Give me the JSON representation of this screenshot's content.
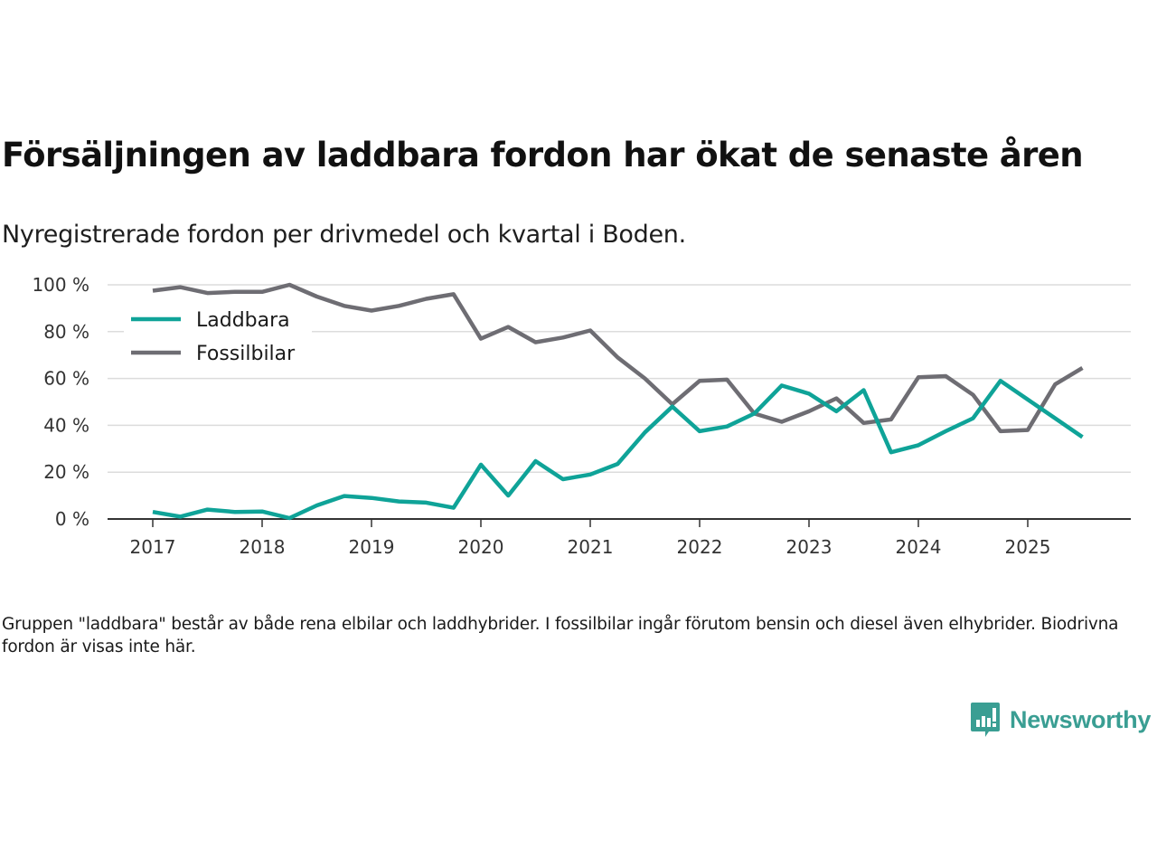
{
  "header": {
    "title": "Försäljningen av laddbara fordon har ökat de senaste åren",
    "subtitle": "Nyregistrerade fordon per drivmedel och kvartal i Boden."
  },
  "footer": {
    "note": "Gruppen \"laddbara\" består av både rena elbilar och laddhybrider. I fossilbilar ingår förutom bensin och diesel även elhybrider. Biodrivna fordon är visas inte här.",
    "brand": "Newsworthy",
    "brand_icon": "bar-chart-speech-bubble-icon",
    "brand_color": "#3a9e93"
  },
  "chart_data": {
    "type": "line",
    "title": "Försäljningen av laddbara fordon har ökat de senaste åren",
    "subtitle": "Nyregistrerade fordon per drivmedel och kvartal i Boden.",
    "xlabel": "",
    "ylabel": "",
    "x": [
      "2017Q1",
      "2017Q2",
      "2017Q3",
      "2017Q4",
      "2018Q1",
      "2018Q2",
      "2018Q3",
      "2018Q4",
      "2019Q1",
      "2019Q2",
      "2019Q3",
      "2019Q4",
      "2020Q1",
      "2020Q2",
      "2020Q3",
      "2020Q4",
      "2021Q1",
      "2021Q2",
      "2021Q3",
      "2021Q4",
      "2022Q1",
      "2022Q2",
      "2022Q3",
      "2022Q4",
      "2023Q1",
      "2023Q2",
      "2023Q3",
      "2023Q4",
      "2024Q1",
      "2024Q2",
      "2024Q3",
      "2024Q4",
      "2025Q1",
      "2025Q2",
      "2025Q3"
    ],
    "x_ticks": [
      "2017",
      "2018",
      "2019",
      "2020",
      "2021",
      "2022",
      "2023",
      "2024",
      "2025"
    ],
    "y_ticks": [
      "0 %",
      "20 %",
      "40 %",
      "60 %",
      "80 %",
      "100 %"
    ],
    "y_tick_values": [
      0,
      20,
      40,
      60,
      80,
      100
    ],
    "ylim": [
      0,
      100
    ],
    "grid": true,
    "legend_position": "top-left",
    "series": [
      {
        "name": "Laddbara",
        "color": "#0fa398",
        "values": [
          3,
          1,
          4,
          3,
          3.2,
          0.4,
          5.8,
          9.8,
          9,
          7.5,
          7,
          4.8,
          23.2,
          10,
          24.7,
          17,
          19,
          23.5,
          37,
          48,
          37.5,
          39.5,
          45,
          57,
          53.5,
          46,
          55,
          28.5,
          31.5,
          37.5,
          43,
          59,
          51,
          43,
          35
        ]
      },
      {
        "name": "Fossilbilar",
        "color": "#6e6d73",
        "values": [
          97.5,
          99,
          96.5,
          97,
          97,
          100,
          95,
          91,
          89,
          91,
          94,
          96,
          77,
          82,
          75.5,
          77.5,
          80.5,
          69,
          60,
          49,
          59,
          59.5,
          45,
          41.5,
          46,
          51.5,
          41,
          42.5,
          60.5,
          61,
          53,
          37.5,
          38,
          57.5,
          64.5
        ]
      }
    ]
  }
}
